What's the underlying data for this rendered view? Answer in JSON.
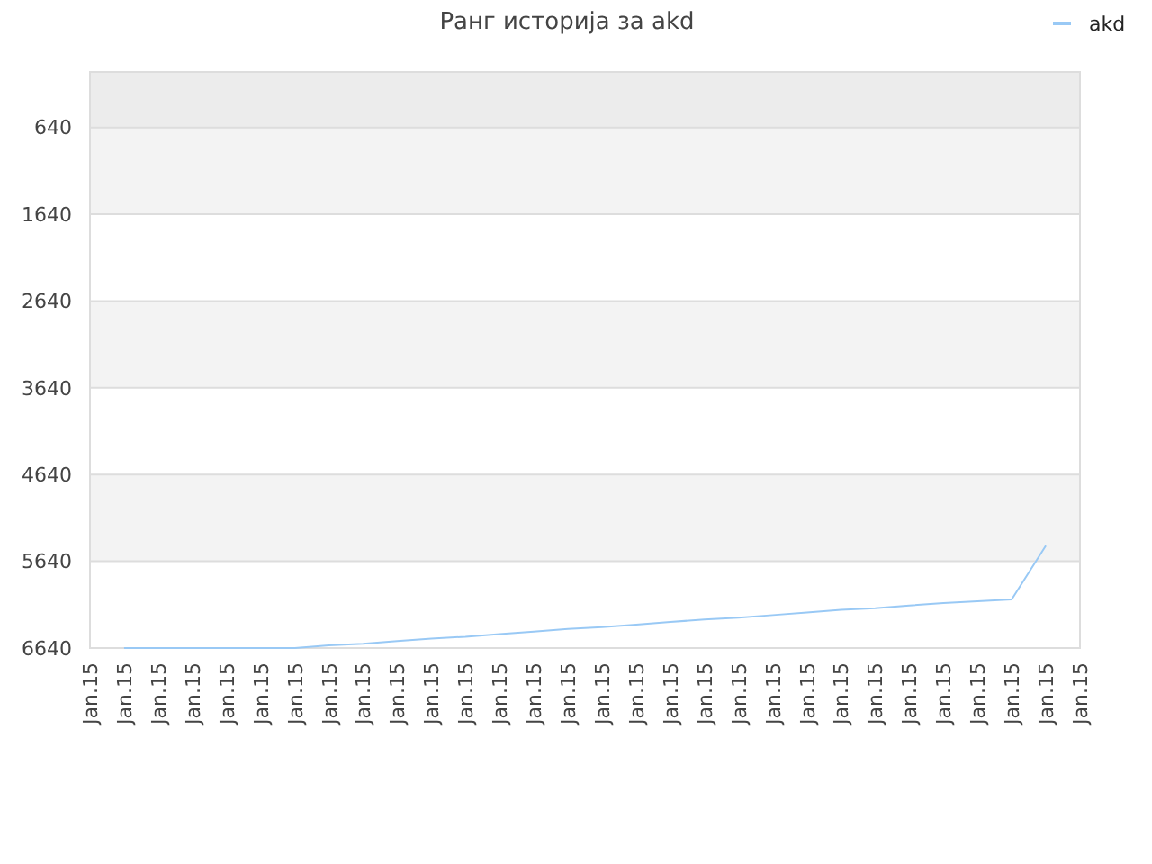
{
  "chart_data": {
    "type": "line",
    "title": "Ранг историја за akd",
    "categories": [
      "Jan.15",
      "Jan.15",
      "Jan.15",
      "Jan.15",
      "Jan.15",
      "Jan.15",
      "Jan.15",
      "Jan.15",
      "Jan.15",
      "Jan.15",
      "Jan.15",
      "Jan.15",
      "Jan.15",
      "Jan.15",
      "Jan.15",
      "Jan.15",
      "Jan.15",
      "Jan.15",
      "Jan.15",
      "Jan.15",
      "Jan.15",
      "Jan.15",
      "Jan.15",
      "Jan.15",
      "Jan.15",
      "Jan.15",
      "Jan.15",
      "Jan.15",
      "Jan.15",
      "Jan.15"
    ],
    "series": [
      {
        "name": "akd",
        "color": "#99c9f5",
        "values": [
          null,
          6640,
          6640,
          6640,
          6640,
          6640,
          6640,
          6610,
          6590,
          6560,
          6530,
          6510,
          6480,
          6450,
          6420,
          6400,
          6370,
          6340,
          6310,
          6290,
          6260,
          6230,
          6200,
          6180,
          6150,
          6120,
          6100,
          6080,
          5460,
          null
        ]
      }
    ],
    "ylim": [
      6640,
      0
    ],
    "yticks": [
      640,
      1640,
      2640,
      3640,
      4640,
      5640,
      6640
    ],
    "bands": [
      {
        "axis": "y",
        "from": 0,
        "to": 640,
        "color": "#ececec"
      }
    ],
    "grid": "y",
    "legend": "top right",
    "marker": "none",
    "line_style": "solid"
  }
}
